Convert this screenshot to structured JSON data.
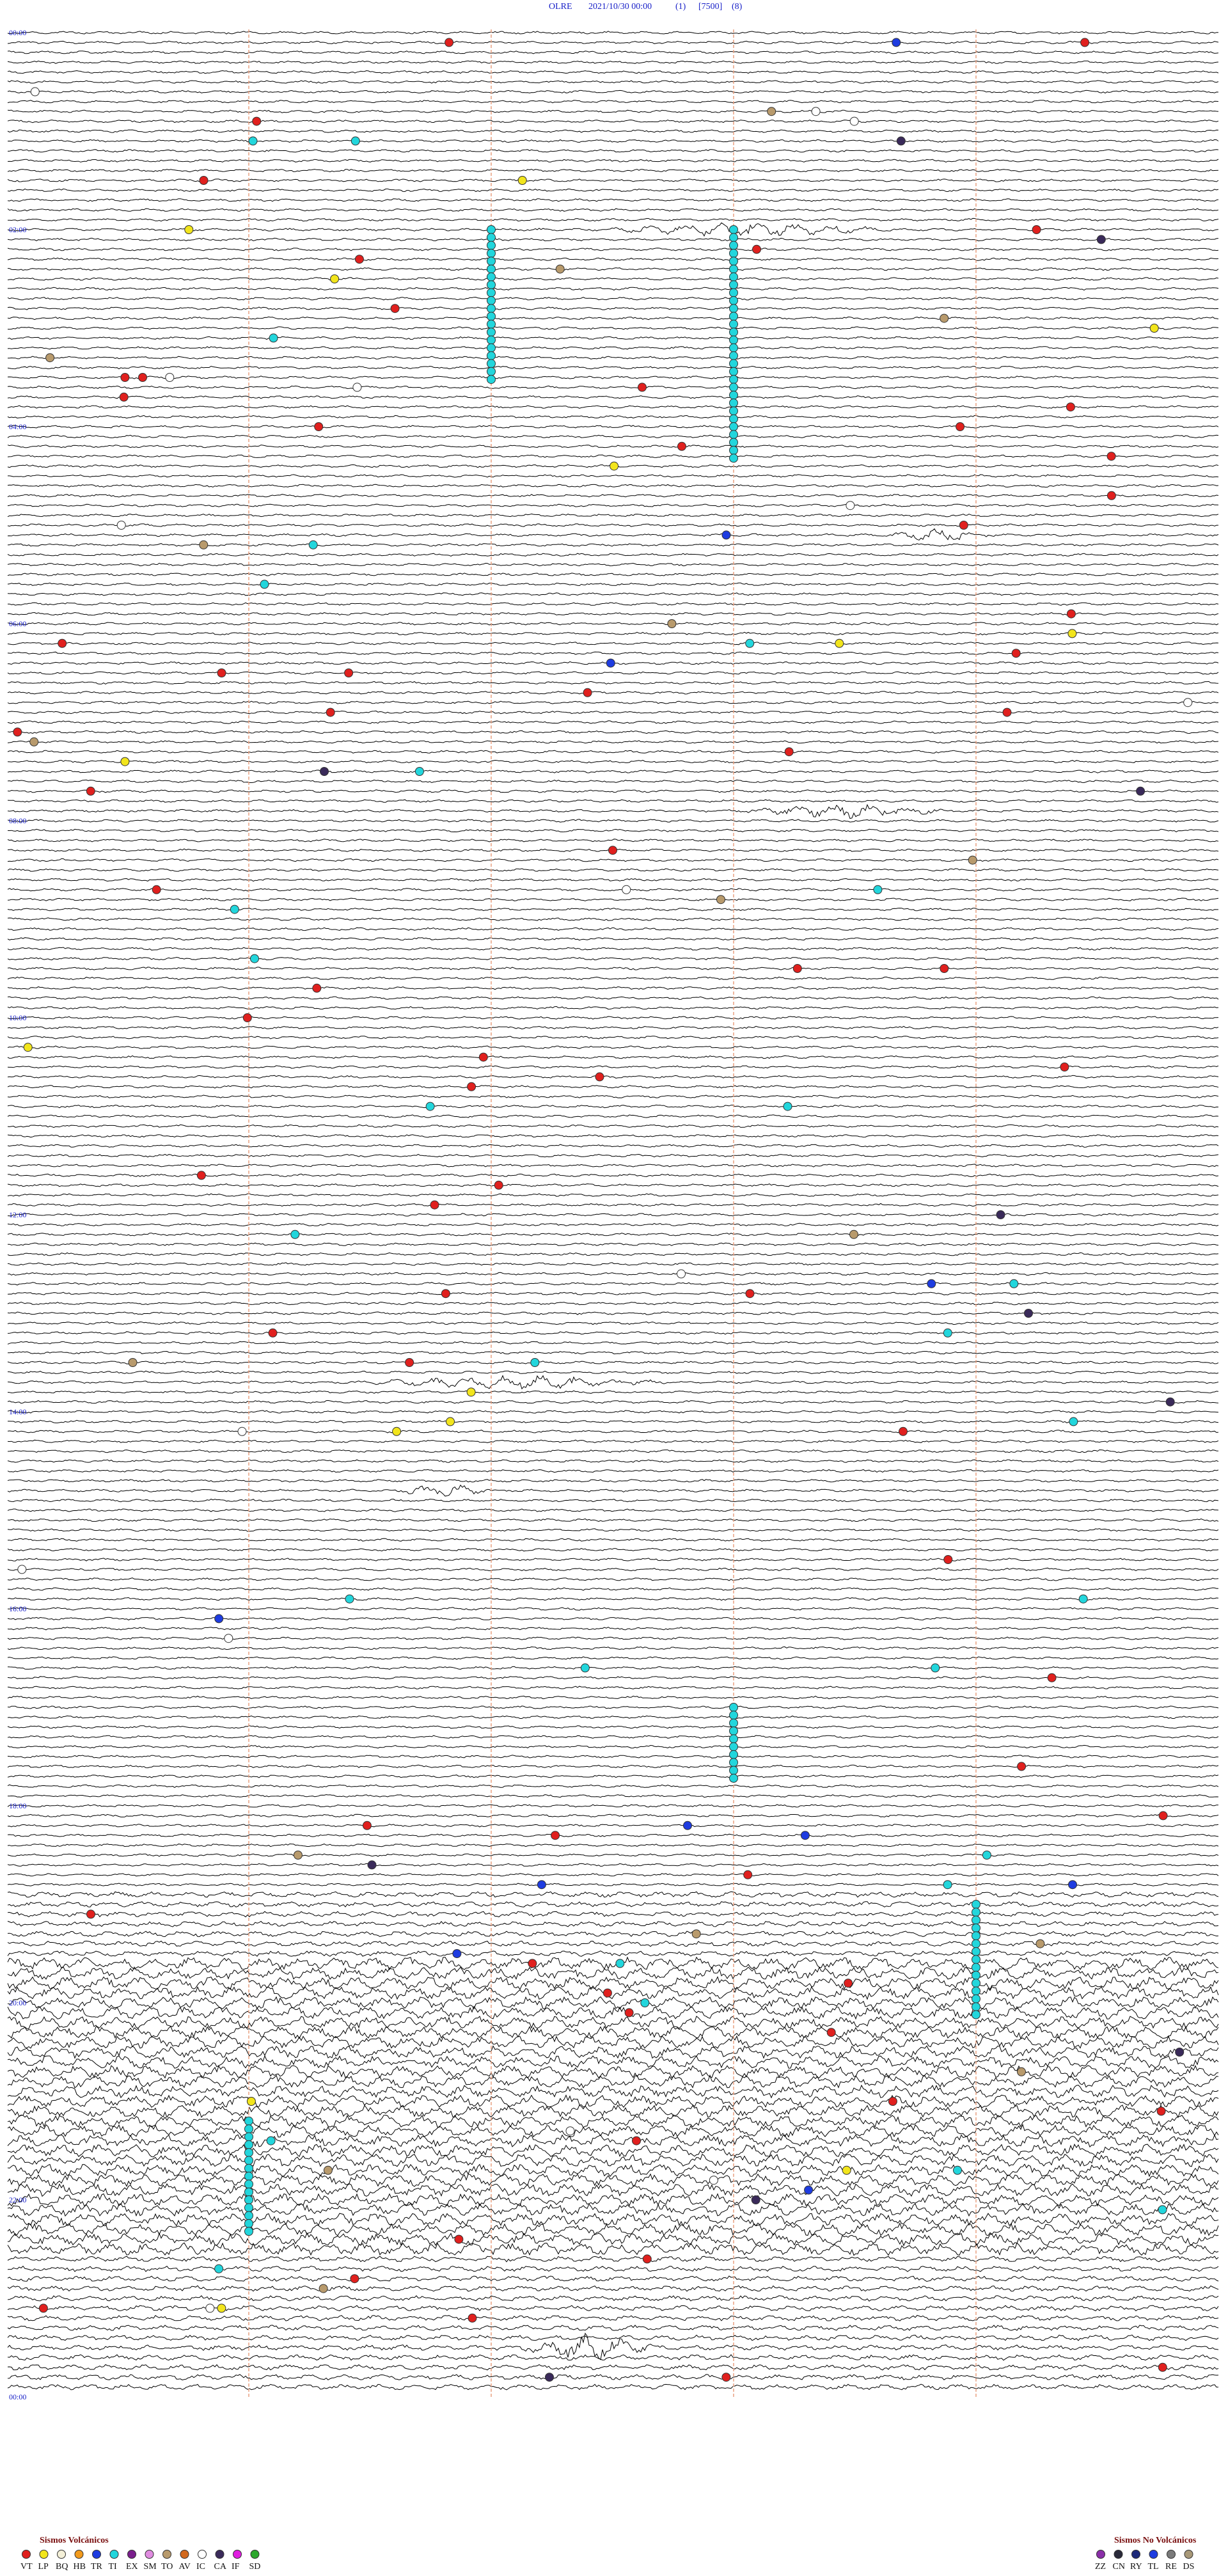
{
  "header": {
    "station": "OLRE",
    "datetime": "2021/10/30 00:00",
    "channel": "(1)",
    "scale": "[7500]",
    "filter": "(8)"
  },
  "hour_labels": [
    "00:00",
    "02:00",
    "04:00",
    "06:00",
    "08:00",
    "10:00",
    "12:00",
    "14:00",
    "16:00",
    "18:00",
    "20:00",
    "22:00",
    "00:00"
  ],
  "legend": {
    "volcanic": {
      "title": "Sismos Volcánicos",
      "items": [
        {
          "code": "VT",
          "color": "#e0201e"
        },
        {
          "code": "LP",
          "color": "#f2e51c"
        },
        {
          "code": "BQ",
          "color": "#f4f0d8"
        },
        {
          "code": "HB",
          "color": "#f29a1c"
        },
        {
          "code": "TR",
          "color": "#1e3ce0"
        },
        {
          "code": "TI",
          "color": "#22d6dc"
        },
        {
          "code": "EX",
          "color": "#7a1e8c"
        },
        {
          "code": "SM",
          "color": "#e08ce0"
        },
        {
          "code": "TO",
          "color": "#b89a6c"
        },
        {
          "code": "AV",
          "color": "#d2691e"
        },
        {
          "code": "IC",
          "color": "#ffffff"
        },
        {
          "code": "CA",
          "color": "#3a2a5a"
        },
        {
          "code": "IF",
          "color": "#e01ee0"
        },
        {
          "code": "SD",
          "color": "#2ea82e"
        }
      ]
    },
    "non_volcanic": {
      "title": "Sismos No Volcánicos",
      "items": [
        {
          "code": "ZZ",
          "color": "#8a2ea8"
        },
        {
          "code": "CN",
          "color": "#2a2a3a"
        },
        {
          "code": "RY",
          "color": "#1e2a7a"
        },
        {
          "code": "TL",
          "color": "#1e3ce0"
        },
        {
          "code": "RE",
          "color": "#7a7a7a"
        },
        {
          "code": "DS",
          "color": "#a89878"
        }
      ]
    }
  }
}
